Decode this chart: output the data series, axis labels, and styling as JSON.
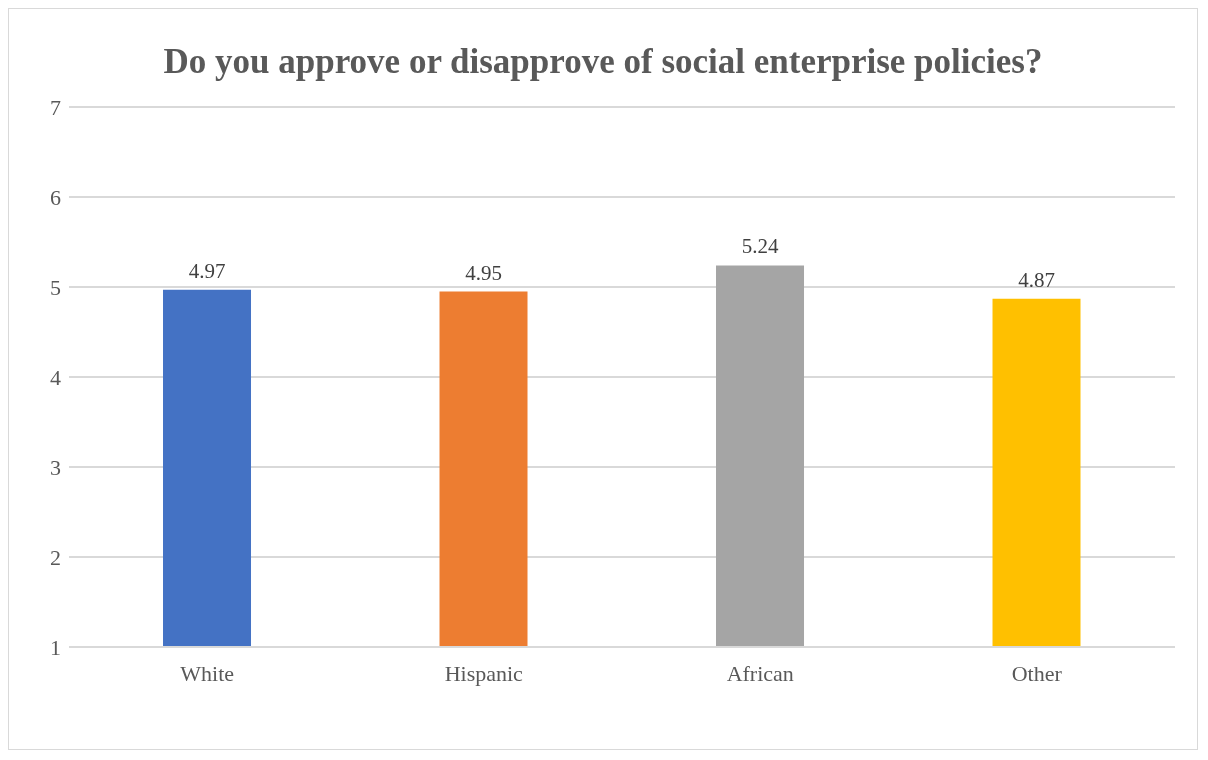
{
  "chart_data": {
    "type": "bar",
    "title": "Do you approve or disapprove of social enterprise policies?",
    "categories": [
      "White",
      "Hispanic",
      "African",
      "Other"
    ],
    "values": [
      4.97,
      4.95,
      5.24,
      4.87
    ],
    "colors": [
      "#4472c4",
      "#ed7d31",
      "#a5a5a5",
      "#ffc000"
    ],
    "ylim": [
      1,
      7
    ],
    "yticks": [
      1,
      2,
      3,
      4,
      5,
      6,
      7
    ],
    "grid": "y",
    "data_labels": true,
    "legend": false
  }
}
